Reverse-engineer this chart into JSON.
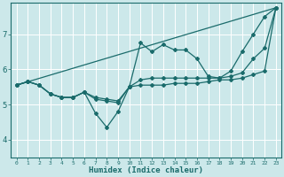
{
  "title": "",
  "xlabel": "Humidex (Indice chaleur)",
  "bg_color": "#cce8ea",
  "grid_color": "#ffffff",
  "line_color": "#1a6b6b",
  "xlim": [
    -0.5,
    23.5
  ],
  "ylim": [
    3.5,
    7.9
  ],
  "xticks": [
    0,
    1,
    2,
    3,
    4,
    5,
    6,
    7,
    8,
    9,
    10,
    11,
    12,
    13,
    14,
    15,
    16,
    17,
    18,
    19,
    20,
    21,
    22,
    23
  ],
  "yticks": [
    4,
    5,
    6,
    7
  ],
  "lines": [
    {
      "x": [
        0,
        1,
        2,
        3,
        4,
        5,
        6,
        7,
        8,
        9,
        10,
        11,
        12,
        13,
        14,
        15,
        16,
        17,
        18,
        19,
        20,
        21,
        22,
        23
      ],
      "y": [
        5.55,
        5.65,
        5.55,
        5.3,
        5.2,
        5.2,
        5.35,
        4.75,
        4.35,
        4.8,
        5.5,
        6.75,
        6.5,
        6.7,
        6.55,
        6.55,
        6.3,
        5.8,
        5.75,
        5.95,
        6.5,
        7.0,
        7.5,
        7.75
      ]
    },
    {
      "x": [
        0,
        1,
        2,
        3,
        4,
        5,
        6,
        7,
        8,
        9,
        10,
        11,
        12,
        13,
        14,
        15,
        16,
        17,
        18,
        19,
        20,
        21,
        22,
        23
      ],
      "y": [
        5.55,
        5.65,
        5.55,
        5.3,
        5.2,
        5.2,
        5.35,
        5.15,
        5.1,
        5.05,
        5.5,
        5.55,
        5.55,
        5.55,
        5.6,
        5.6,
        5.6,
        5.65,
        5.7,
        5.7,
        5.75,
        5.85,
        5.95,
        7.75
      ]
    },
    {
      "x": [
        0,
        1,
        2,
        3,
        4,
        5,
        6,
        7,
        8,
        9,
        10,
        11,
        12,
        13,
        14,
        15,
        16,
        17,
        18,
        19,
        20,
        21,
        22,
        23
      ],
      "y": [
        5.55,
        5.65,
        5.55,
        5.3,
        5.2,
        5.2,
        5.35,
        5.2,
        5.15,
        5.1,
        5.5,
        5.7,
        5.75,
        5.75,
        5.75,
        5.75,
        5.75,
        5.75,
        5.75,
        5.8,
        5.9,
        6.3,
        6.6,
        7.75
      ]
    },
    {
      "x": [
        0,
        23
      ],
      "y": [
        5.55,
        7.75
      ]
    }
  ]
}
